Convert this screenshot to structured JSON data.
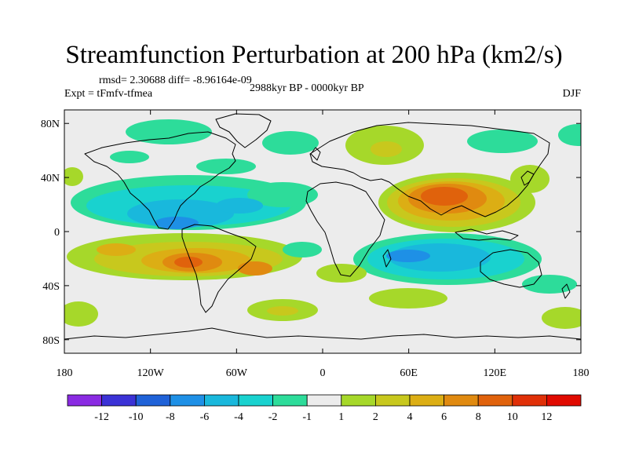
{
  "header": {
    "title": "Streamfunction Perturbation at 200 hPa (km2/s)",
    "stats": "rmsd= 2.30688 diff= -8.96164e-09",
    "experiment": "Expt = tFmfv-tfmea",
    "period": "2988kyr BP - 0000kyr BP",
    "season": "DJF"
  },
  "map": {
    "projection": "cylindrical equidistant",
    "lon_range": [
      -180,
      180
    ],
    "lat_range": [
      -90,
      90
    ],
    "lon_ticks": [
      {
        "value": -180,
        "label": "180"
      },
      {
        "value": -120,
        "label": "120W"
      },
      {
        "value": -60,
        "label": "60W"
      },
      {
        "value": 0,
        "label": "0"
      },
      {
        "value": 60,
        "label": "60E"
      },
      {
        "value": 120,
        "label": "120E"
      },
      {
        "value": 180,
        "label": "180"
      }
    ],
    "lat_ticks": [
      {
        "value": 80,
        "label": "80N"
      },
      {
        "value": 40,
        "label": "40N"
      },
      {
        "value": 0,
        "label": "0"
      },
      {
        "value": -40,
        "label": "40S"
      },
      {
        "value": -80,
        "label": "80S"
      }
    ]
  },
  "colorbar": {
    "labels": [
      "-12",
      "-10",
      "-8",
      "-6",
      "-4",
      "-2",
      "-1",
      "1",
      "2",
      "4",
      "6",
      "8",
      "10",
      "12"
    ],
    "colors": [
      "#8a2be2",
      "#3b32d6",
      "#1f62d8",
      "#1e90e6",
      "#19b8dc",
      "#19d2cf",
      "#2ddc9a",
      "#ececec",
      "#a6d82a",
      "#c8c81d",
      "#dcae14",
      "#e08a10",
      "#e0620c",
      "#e03008",
      "#e00a00"
    ]
  },
  "legend": {
    "levels": [
      -12,
      -10,
      -8,
      -6,
      -4,
      -2,
      -1,
      1,
      2,
      4,
      6,
      8,
      10,
      12
    ]
  }
}
